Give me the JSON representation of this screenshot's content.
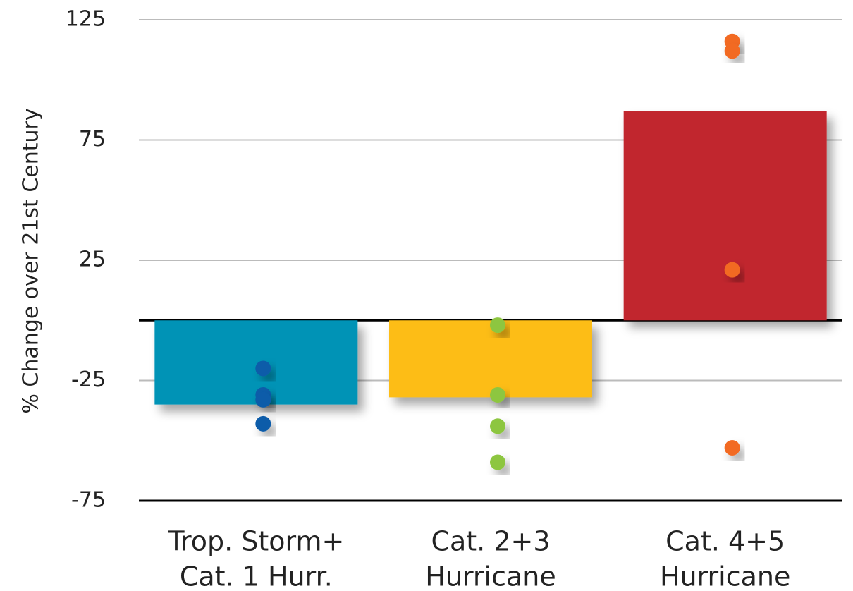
{
  "chart_data": {
    "type": "bar_dots",
    "y_label": "% Change over 21st Century",
    "categories": [
      [
        "Trop. Storm+",
        "Cat. 1 Hurr."
      ],
      [
        "Cat. 2+3",
        "Hurricane"
      ],
      [
        "Cat. 4+5",
        "Hurricane"
      ]
    ],
    "values": [
      -35,
      -32,
      87
    ],
    "colors": [
      "#0093b6",
      "#fdbd14",
      "#c1272f"
    ],
    "points": [
      [
        -20,
        -31,
        -33,
        -43
      ],
      [
        -2,
        -31,
        -44,
        -59
      ],
      [
        116,
        112,
        21,
        -53
      ]
    ],
    "point_colors": [
      "#0b5ba9",
      "#8dc63f",
      "#f26a22"
    ],
    "ylim": [
      -75,
      125
    ],
    "yticks": [
      125,
      75,
      25,
      -25,
      -75
    ],
    "grid": true
  }
}
